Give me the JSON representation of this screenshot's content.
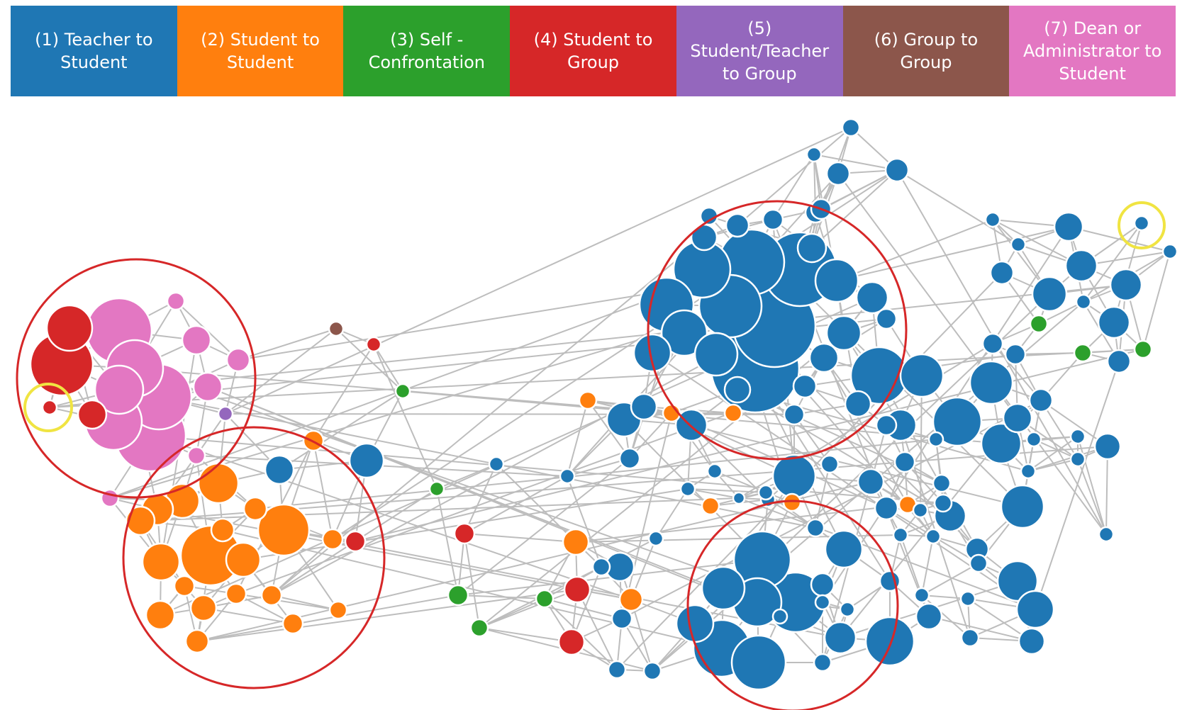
{
  "legend": [
    {
      "label": "(1) Teacher to Student",
      "color": "#1f77b4"
    },
    {
      "label": "(2) Student to Student",
      "color": "#ff7f0e"
    },
    {
      "label": "(3) Self - Confrontation",
      "color": "#2ca02c"
    },
    {
      "label": "(4) Student to Group",
      "color": "#d62728"
    },
    {
      "label": "(5) Student/Teacher to Group",
      "color": "#9467bd"
    },
    {
      "label": "(6) Group to Group",
      "color": "#8c564b"
    },
    {
      "label": "(7) Dean or Administrator to Student",
      "color": "#e377c2"
    }
  ],
  "highlight_colors": {
    "cluster": "#d62728",
    "outlier": "#f0e442"
  }
}
